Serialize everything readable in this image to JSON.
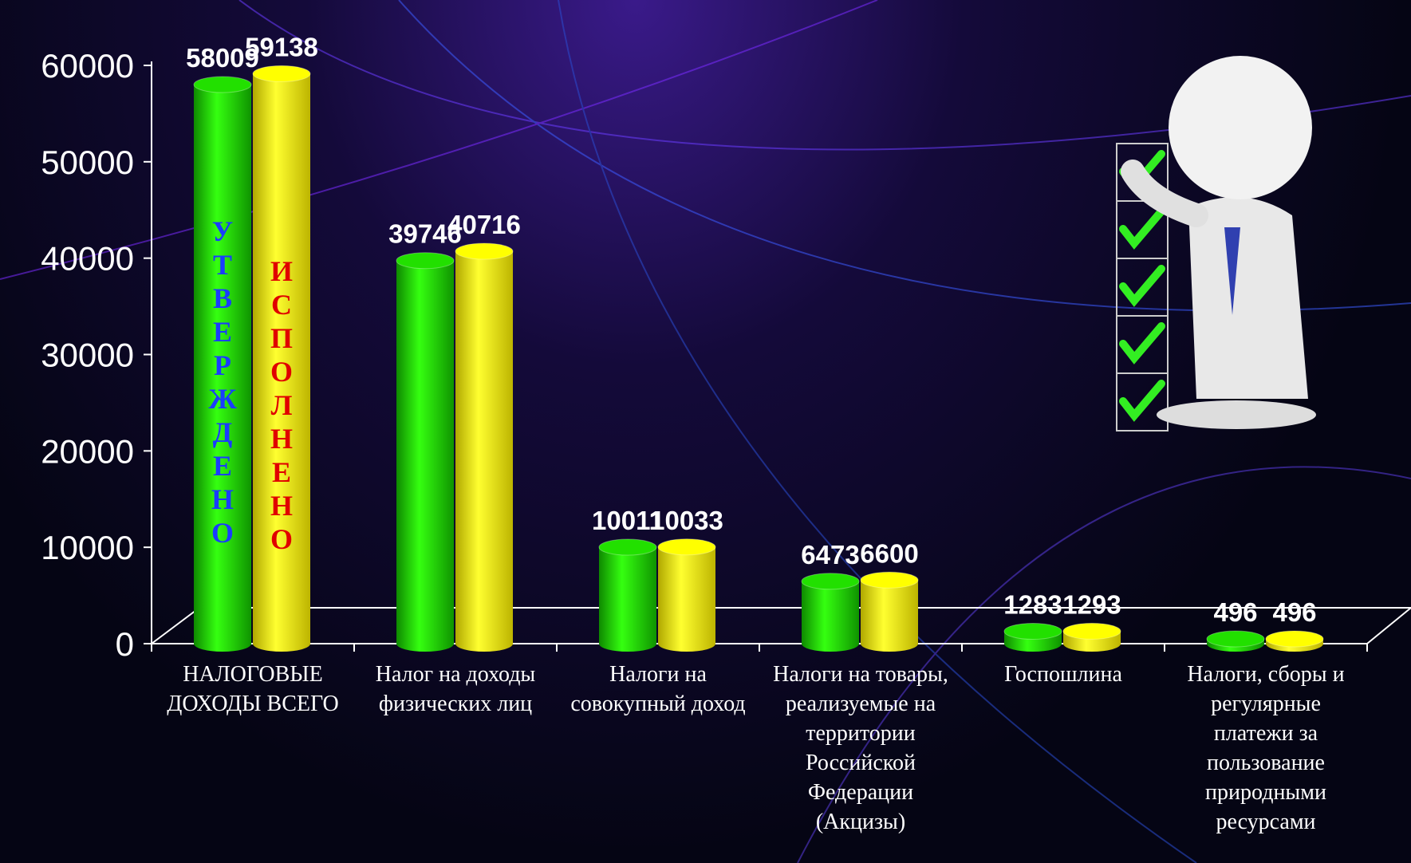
{
  "chart_data": {
    "type": "bar",
    "categories": [
      "НАЛОГОВЫЕ ДОХОДЫ ВСЕГО",
      "Налог на доходы физических лиц",
      "Налоги на совокупный доход",
      "Налоги на товары, реализуемые на территории Российской Федерации (Акцизы)",
      "Госпошлина",
      "Налоги, сборы и регулярные платежи за пользование природными ресурсами"
    ],
    "series": [
      {
        "name": "УТВЕРЖДЕНО",
        "color": "#22e000",
        "label_color": "#1a3cff",
        "values": [
          58009,
          39746,
          10011,
          6473,
          1283,
          496
        ]
      },
      {
        "name": "ИСПОЛНЕНО",
        "color": "#ffff00",
        "label_color": "#e00000",
        "values": [
          59138,
          40716,
          10033,
          6600,
          1293,
          496
        ]
      }
    ],
    "ylim": [
      0,
      60000
    ],
    "yticks": [
      0,
      10000,
      20000,
      30000,
      40000,
      50000,
      60000
    ]
  }
}
